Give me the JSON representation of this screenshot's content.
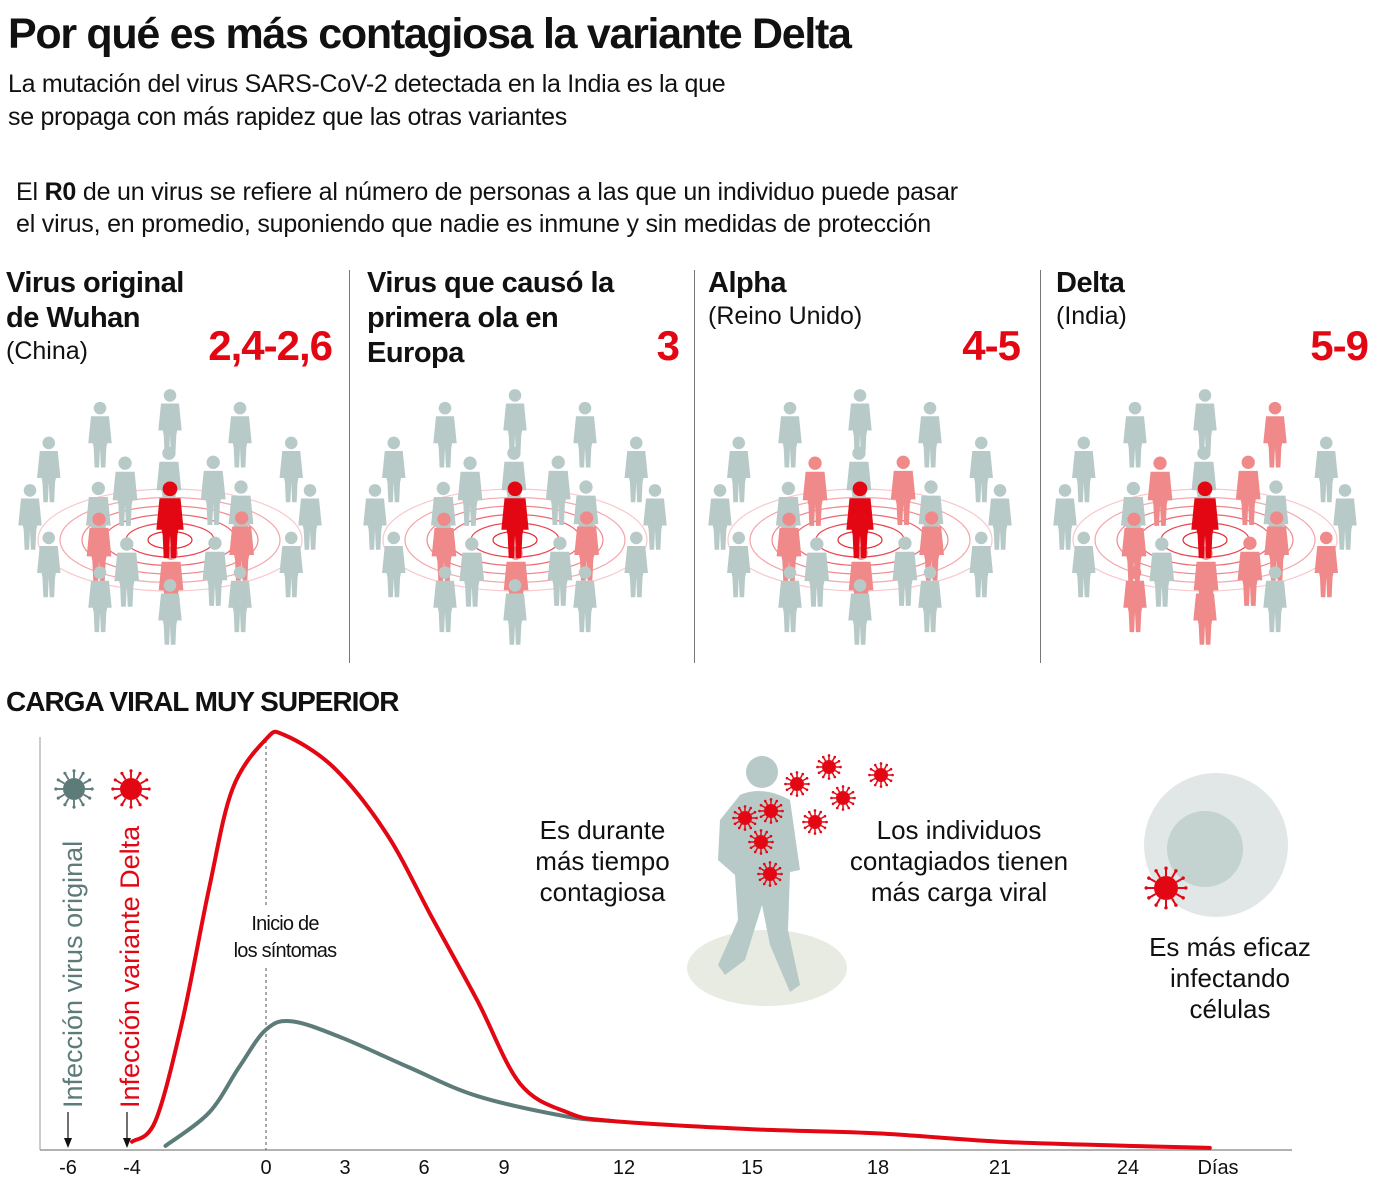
{
  "title": "Por qué es más contagiosa la variante Delta",
  "subtitle": [
    "La mutación del virus SARS-CoV-2 detectada en la India es la que",
    "se propaga con más rapidez que las otras variantes"
  ],
  "r0_text": {
    "prefix": "El ",
    "bold": "R0",
    "line1_rest": " de un virus se refiere al número de personas a las que un individuo puede pasar",
    "line2": "el virus, en promedio, suponiendo que nadie es inmune y sin medidas de protección"
  },
  "variants": [
    {
      "title_lines": [
        "Virus original",
        "de Wuhan"
      ],
      "sub": "(China)",
      "r0": "2,4-2,6"
    },
    {
      "title_lines": [
        "Virus que causó la",
        "primera ola en",
        "Europa"
      ],
      "sub": "",
      "r0": "3"
    },
    {
      "title_lines": [
        "Alpha"
      ],
      "sub": "(Reino Unido)",
      "r0": "4-5"
    },
    {
      "title_lines": [
        "Delta"
      ],
      "sub": "(India)",
      "r0": "5-9"
    }
  ],
  "colors": {
    "red": "#e30613",
    "pink": "#f08a8a",
    "grey": "#b7cac8",
    "dark_grey": "#5d7b79",
    "cell": "#d5dfdd"
  },
  "annotations": {
    "longer": [
      "Es durante",
      "más tiempo",
      "contagiosa"
    ],
    "viral_load": [
      "Los individuos",
      "contagiados tienen",
      "más carga viral"
    ],
    "cells": [
      "Es más eficaz",
      "infectando",
      "células"
    ],
    "symptoms": [
      "Inicio de",
      "los síntomas"
    ]
  },
  "chart_data": {
    "type": "line",
    "title": "CARGA VIRAL MUY SUPERIOR",
    "xlabel": "Días",
    "ylabel": "",
    "x_ticks": [
      "-6",
      "-4",
      "0",
      "3",
      "6",
      "9",
      "12",
      "15",
      "18",
      "21",
      "24"
    ],
    "ylim": [
      0,
      100
    ],
    "grid": false,
    "series": [
      {
        "name": "Infección variante Delta",
        "color": "#e30613",
        "infection_day": -4,
        "points": [
          [
            -4,
            2
          ],
          [
            -3.3,
            7
          ],
          [
            -2.5,
            31
          ],
          [
            -1.7,
            63
          ],
          [
            -1,
            87
          ],
          [
            0,
            99
          ],
          [
            0.7,
            100
          ],
          [
            2.6,
            92
          ],
          [
            4.6,
            76
          ],
          [
            6.3,
            56
          ],
          [
            8,
            36
          ],
          [
            9.4,
            16
          ],
          [
            10.6,
            9
          ],
          [
            11.7,
            7
          ],
          [
            15,
            5
          ],
          [
            18,
            4
          ],
          [
            21,
            2
          ],
          [
            24,
            1
          ],
          [
            26,
            0.5
          ]
        ]
      },
      {
        "name": "Infección virus original",
        "color": "#5d7b79",
        "infection_day": -6,
        "points": [
          [
            -3,
            1
          ],
          [
            -1.7,
            9
          ],
          [
            -0.8,
            20
          ],
          [
            0,
            29
          ],
          [
            1,
            31
          ],
          [
            2.9,
            27
          ],
          [
            5.4,
            20
          ],
          [
            8,
            13
          ],
          [
            10.6,
            8
          ],
          [
            11.7,
            7
          ]
        ]
      }
    ],
    "annotation": "Inicio de los síntomas"
  }
}
